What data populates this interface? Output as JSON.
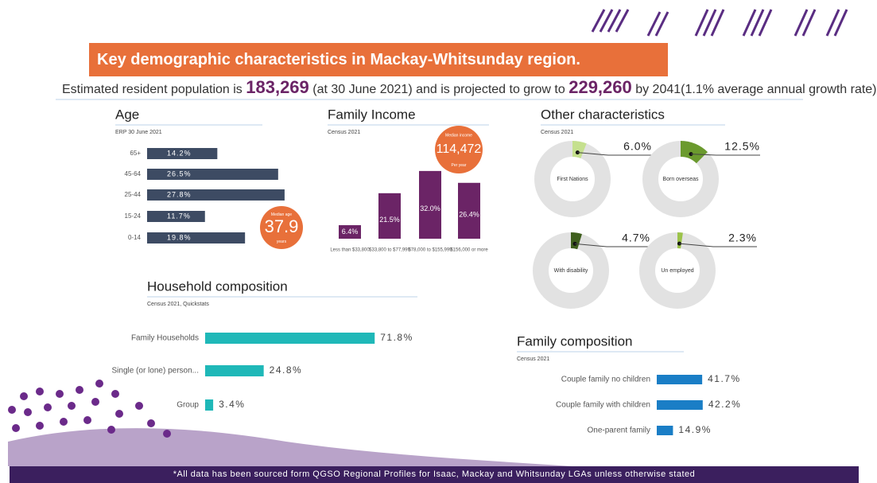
{
  "header": {
    "title": "Key demographic characteristics in Mackay-Whitsunday region.",
    "population": {
      "before": "Estimated resident population is",
      "current": "183,269",
      "middle": "(at 30 June 2021) and is projected to grow to",
      "projected": "229,260",
      "after": "by 2041(1.1% average annual growth rate)"
    }
  },
  "footer": "*All data has been sourced form QGSO Regional Profiles for Isaac, Mackay and Whitsunday LGAs unless otherwise stated",
  "chart_data": [
    {
      "type": "hbar",
      "title": "Age",
      "subtitle": "ERP 30 June 2021",
      "categories": [
        "65+",
        "45-64",
        "25-44",
        "15-24",
        "0-14"
      ],
      "values": [
        14.2,
        26.5,
        27.8,
        11.7,
        19.8
      ],
      "value_labels": [
        "14.2%",
        "26.5%",
        "27.8%",
        "11.7%",
        "19.8%"
      ],
      "color": "#3d4b63",
      "annotation": {
        "label": "Median age",
        "value": "37.9",
        "unit": "years"
      }
    },
    {
      "type": "bar",
      "title": "Family Income",
      "subtitle": "Census 2021",
      "categories": [
        "Less than $33,800",
        "$33,800 to $77,999",
        "$78,000 to $155,999",
        "$156,000 or more"
      ],
      "values": [
        6.4,
        21.5,
        32.0,
        26.4
      ],
      "value_labels": [
        "6.4%",
        "21.5%",
        "32.0%",
        "26.4%"
      ],
      "color": "#6b2466",
      "annotation": {
        "label": "Median income",
        "value": "114,472",
        "unit": "Per year"
      }
    },
    {
      "type": "donut",
      "title": "Other characteristics",
      "subtitle": "Census 2021",
      "categories": [
        "First Nations",
        "Born overseas",
        "With disability",
        "Un employed"
      ],
      "values": [
        6.0,
        12.5,
        4.7,
        2.3
      ],
      "value_labels": [
        "6.0%",
        "12.5%",
        "4.7%",
        "2.3%"
      ],
      "colors": [
        "#c5e08e",
        "#6b9a2e",
        "#3f5f1e",
        "#9cc34a"
      ],
      "track_color": "#e2e2e2"
    },
    {
      "type": "hbar",
      "title": "Household composition",
      "subtitle": "Census 2021, Quickstats",
      "categories": [
        "Family Households",
        "Single (or lone) person...",
        "Group"
      ],
      "values": [
        71.8,
        24.8,
        3.4
      ],
      "value_labels": [
        "71.8%",
        "24.8%",
        "3.4%"
      ],
      "color": "#1fb8b8"
    },
    {
      "type": "hbar",
      "title": "Family composition",
      "subtitle": "Census 2021",
      "categories": [
        "Couple family no children",
        "Couple family with children",
        "One-parent family"
      ],
      "values": [
        41.7,
        42.2,
        14.9
      ],
      "value_labels": [
        "41.7%",
        "42.2%",
        "14.9%"
      ],
      "color": "#1a7ec6"
    }
  ]
}
